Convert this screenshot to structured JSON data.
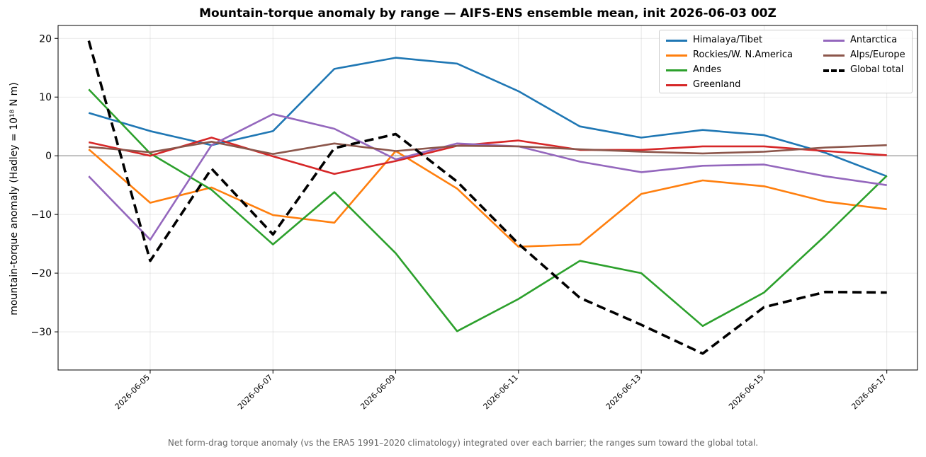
{
  "chart_data": {
    "type": "line",
    "title": "Mountain-torque anomaly by range — AIFS-ENS ensemble mean, init 2026-06-03 00Z",
    "xlabel": "",
    "ylabel": "mountain-torque anomaly (Hadley = 10¹⁸ N m)",
    "footnote": "Net form-drag torque anomaly (vs the ERA5 1991–2020 climatology) integrated over each barrier; the ranges sum toward the global total.",
    "x": [
      "2026-06-04",
      "2026-06-05",
      "2026-06-06",
      "2026-06-07",
      "2026-06-08",
      "2026-06-09",
      "2026-06-10",
      "2026-06-11",
      "2026-06-12",
      "2026-06-13",
      "2026-06-14",
      "2026-06-15",
      "2026-06-16",
      "2026-06-17"
    ],
    "x_ticks": [
      "2026-06-05",
      "2026-06-07",
      "2026-06-09",
      "2026-06-11",
      "2026-06-13",
      "2026-06-15",
      "2026-06-17"
    ],
    "xlim": [
      "2026-06-03T12:00",
      "2026-06-17T12:00"
    ],
    "ylim": [
      -36.5,
      22.2
    ],
    "y_ticks": [
      20,
      10,
      0,
      -10,
      -20,
      -30
    ],
    "y_tick_labels": [
      "20",
      "10",
      "0",
      "−10",
      "−20",
      "−30"
    ],
    "grid": true,
    "zero_line": true,
    "legend_position": "top-right",
    "series": [
      {
        "name": "Himalaya/Tibet",
        "color": "#1f77b4",
        "dashed": false,
        "values": [
          7.3,
          4.2,
          1.8,
          4.2,
          14.8,
          16.7,
          15.7,
          11.0,
          5.0,
          3.1,
          4.4,
          3.5,
          0.5,
          -3.5
        ]
      },
      {
        "name": "Rockies/W. N.America",
        "color": "#ff7f0e",
        "dashed": false,
        "values": [
          1.1,
          -8.0,
          -5.4,
          -10.1,
          -11.4,
          0.8,
          -5.6,
          -15.5,
          -15.1,
          -6.5,
          -4.2,
          -5.2,
          -7.8,
          -9.1
        ]
      },
      {
        "name": "Andes",
        "color": "#2ca02c",
        "dashed": false,
        "values": [
          11.3,
          0.4,
          -5.8,
          -15.1,
          -6.2,
          -16.6,
          -29.9,
          -24.4,
          -17.9,
          -20.0,
          -29.0,
          -23.3,
          -13.6,
          -3.4
        ]
      },
      {
        "name": "Greenland",
        "color": "#d62728",
        "dashed": false,
        "values": [
          2.3,
          0.0,
          3.1,
          -0.1,
          -3.1,
          -0.9,
          1.7,
          2.6,
          1.0,
          1.0,
          1.6,
          1.6,
          0.8,
          0.1
        ]
      },
      {
        "name": "Antarctica",
        "color": "#9467bd",
        "dashed": false,
        "values": [
          -3.5,
          -14.3,
          1.8,
          7.1,
          4.6,
          -0.6,
          2.1,
          1.6,
          -1.0,
          -2.8,
          -1.7,
          -1.5,
          -3.5,
          -5.0
        ]
      },
      {
        "name": "Alps/Europe",
        "color": "#8c564b",
        "dashed": false,
        "values": [
          1.5,
          0.6,
          2.4,
          0.3,
          2.1,
          0.8,
          1.7,
          1.6,
          1.1,
          0.7,
          0.4,
          0.7,
          1.4,
          1.8
        ]
      },
      {
        "name": "Global total",
        "color": "#000000",
        "dashed": true,
        "values": [
          19.6,
          -17.9,
          -2.2,
          -13.4,
          1.3,
          3.7,
          -4.4,
          -15.0,
          -24.2,
          -28.8,
          -33.7,
          -25.8,
          -23.2,
          -23.3
        ]
      }
    ]
  }
}
